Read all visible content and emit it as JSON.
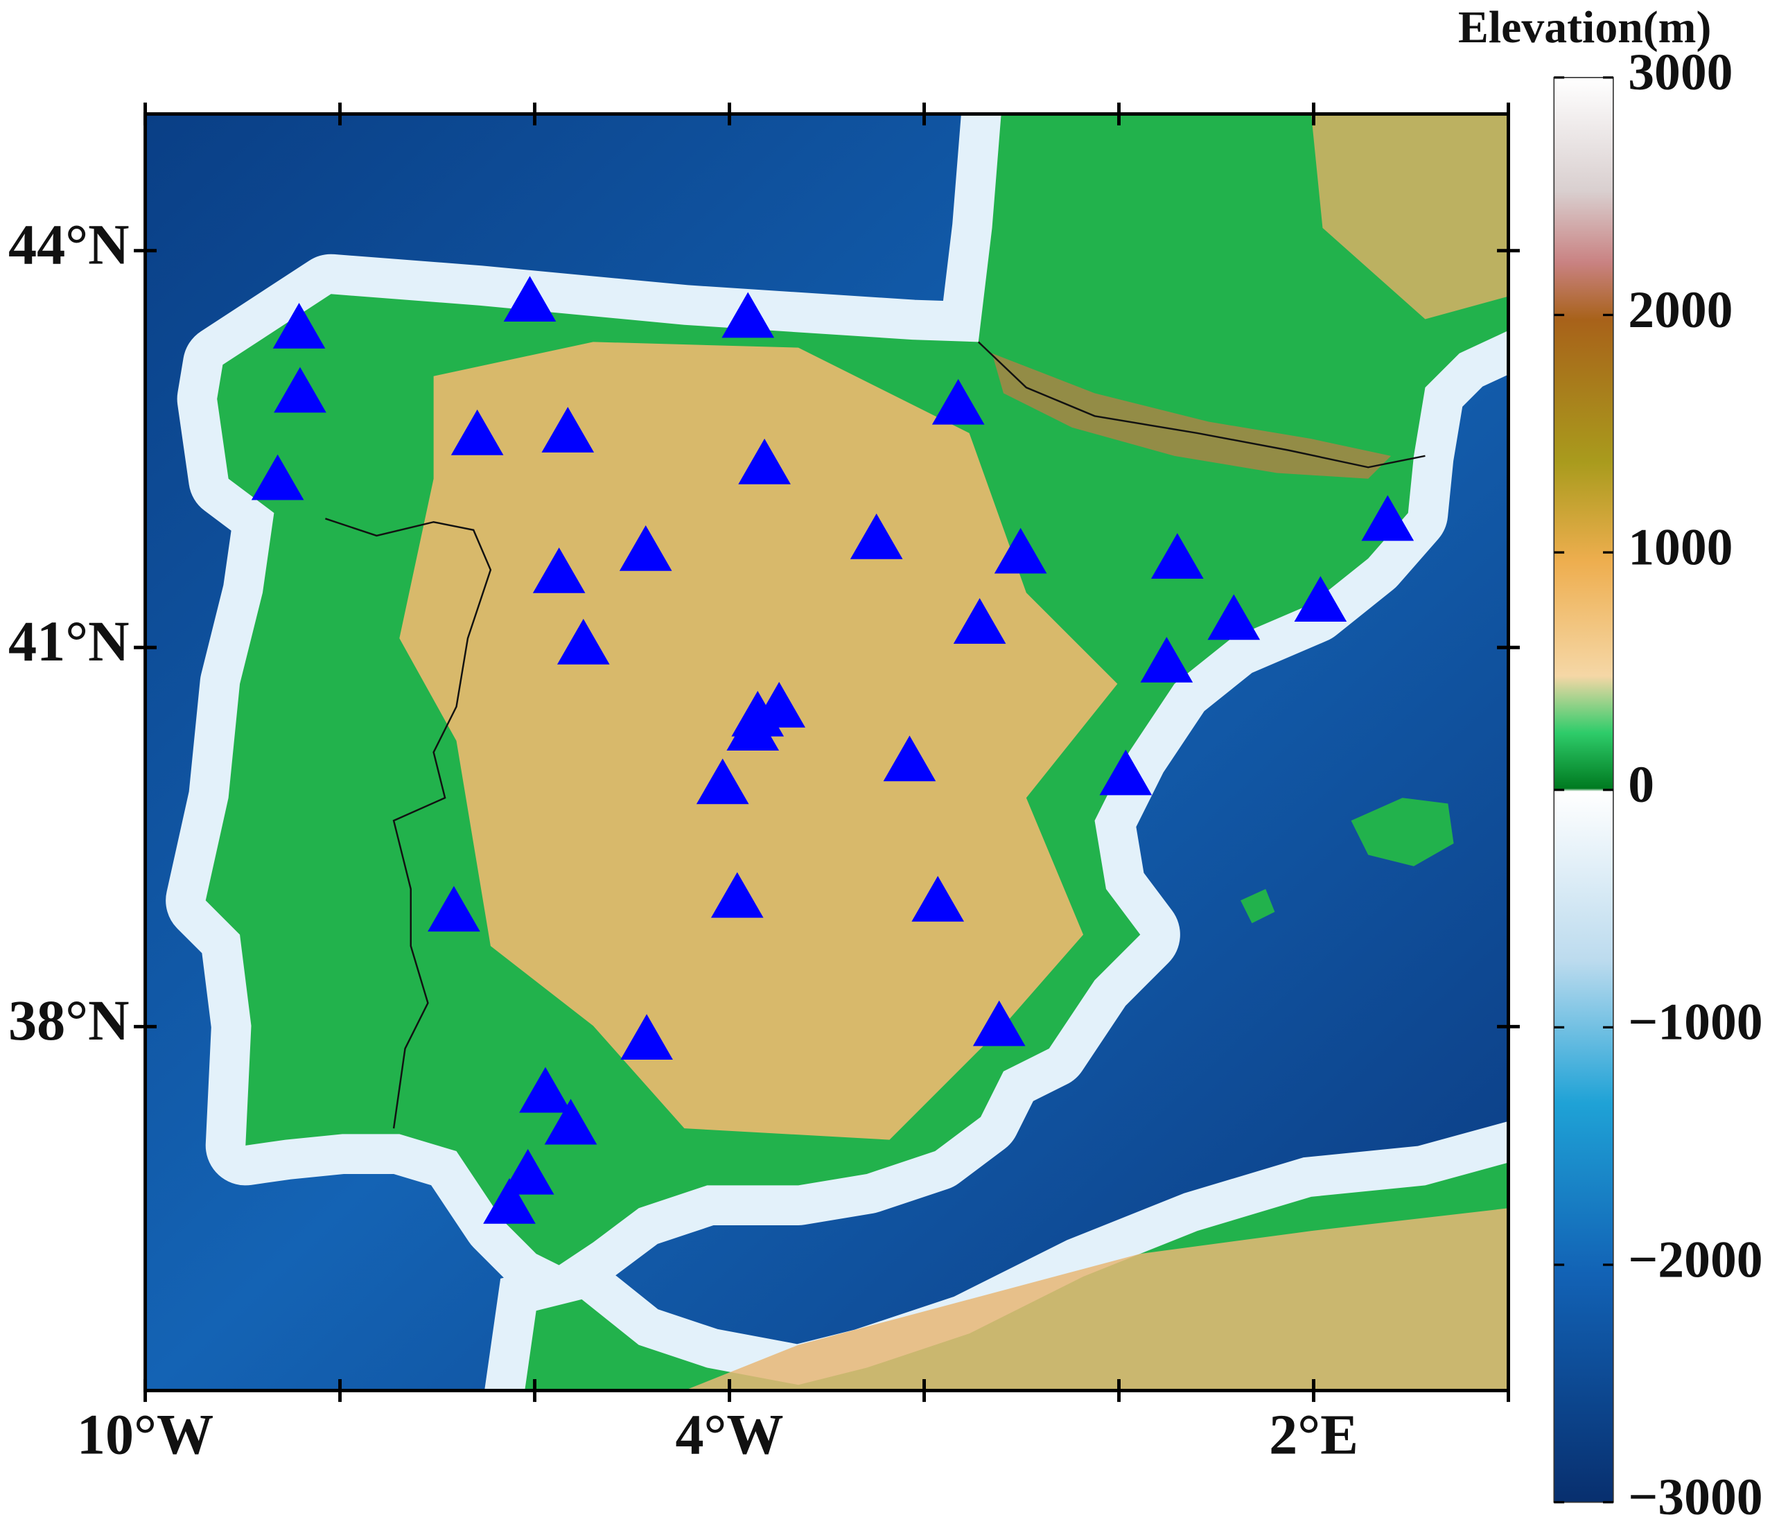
{
  "chart_data": {
    "type": "scatter",
    "projection": "mercator",
    "xlim": [
      -10,
      4
    ],
    "ylim": [
      35,
      45
    ],
    "xticks": [
      {
        "value": -10,
        "label": "10°W"
      },
      {
        "value": -4,
        "label": "4°W"
      },
      {
        "value": 2,
        "label": "2°E"
      }
    ],
    "xminorticks": [
      -8,
      -6,
      -2,
      0,
      4
    ],
    "yticks": [
      {
        "value": 44,
        "label": "44°N"
      },
      {
        "value": 41,
        "label": "41°N"
      },
      {
        "value": 38,
        "label": "38°N"
      }
    ],
    "series": [
      {
        "color": "#0000ff",
        "marker": "triangle",
        "x": [
          -8.42,
          -8.41,
          -8.64,
          -6.05,
          -3.81,
          -6.59,
          -5.66,
          -3.64,
          -1.65,
          -4.86,
          -5.75,
          -5.5,
          -2.49,
          -1.01,
          0.6,
          2.76,
          2.07,
          1.18,
          -1.43,
          0.49,
          -3.49,
          -3.71,
          -3.76,
          -2.15,
          -4.07,
          0.07,
          -6.83,
          -3.92,
          -1.86,
          -4.85,
          -1.23,
          -5.89,
          -5.63,
          -6.07,
          -6.26
        ],
        "values": [
          43.41,
          42.93,
          42.27,
          43.61,
          43.49,
          42.61,
          42.63,
          42.39,
          42.84,
          41.73,
          41.56,
          41.01,
          41.82,
          41.71,
          41.67,
          41.96,
          41.34,
          41.2,
          41.17,
          40.87,
          40.52,
          40.45,
          40.34,
          40.1,
          39.92,
          39.99,
          38.91,
          39.02,
          38.99,
          37.88,
          37.99,
          37.45,
          37.19,
          36.78,
          36.54
        ]
      }
    ],
    "colorbar": {
      "label": "Elevation(m)",
      "lim": [
        -3000,
        3000
      ],
      "ticks": [
        3000,
        2000,
        1000,
        0,
        {
          "value": -1000,
          "label": "−1000"
        },
        {
          "value": -2000,
          "label": "−2000"
        },
        {
          "value": -3000,
          "label": "−3000"
        }
      ]
    }
  }
}
